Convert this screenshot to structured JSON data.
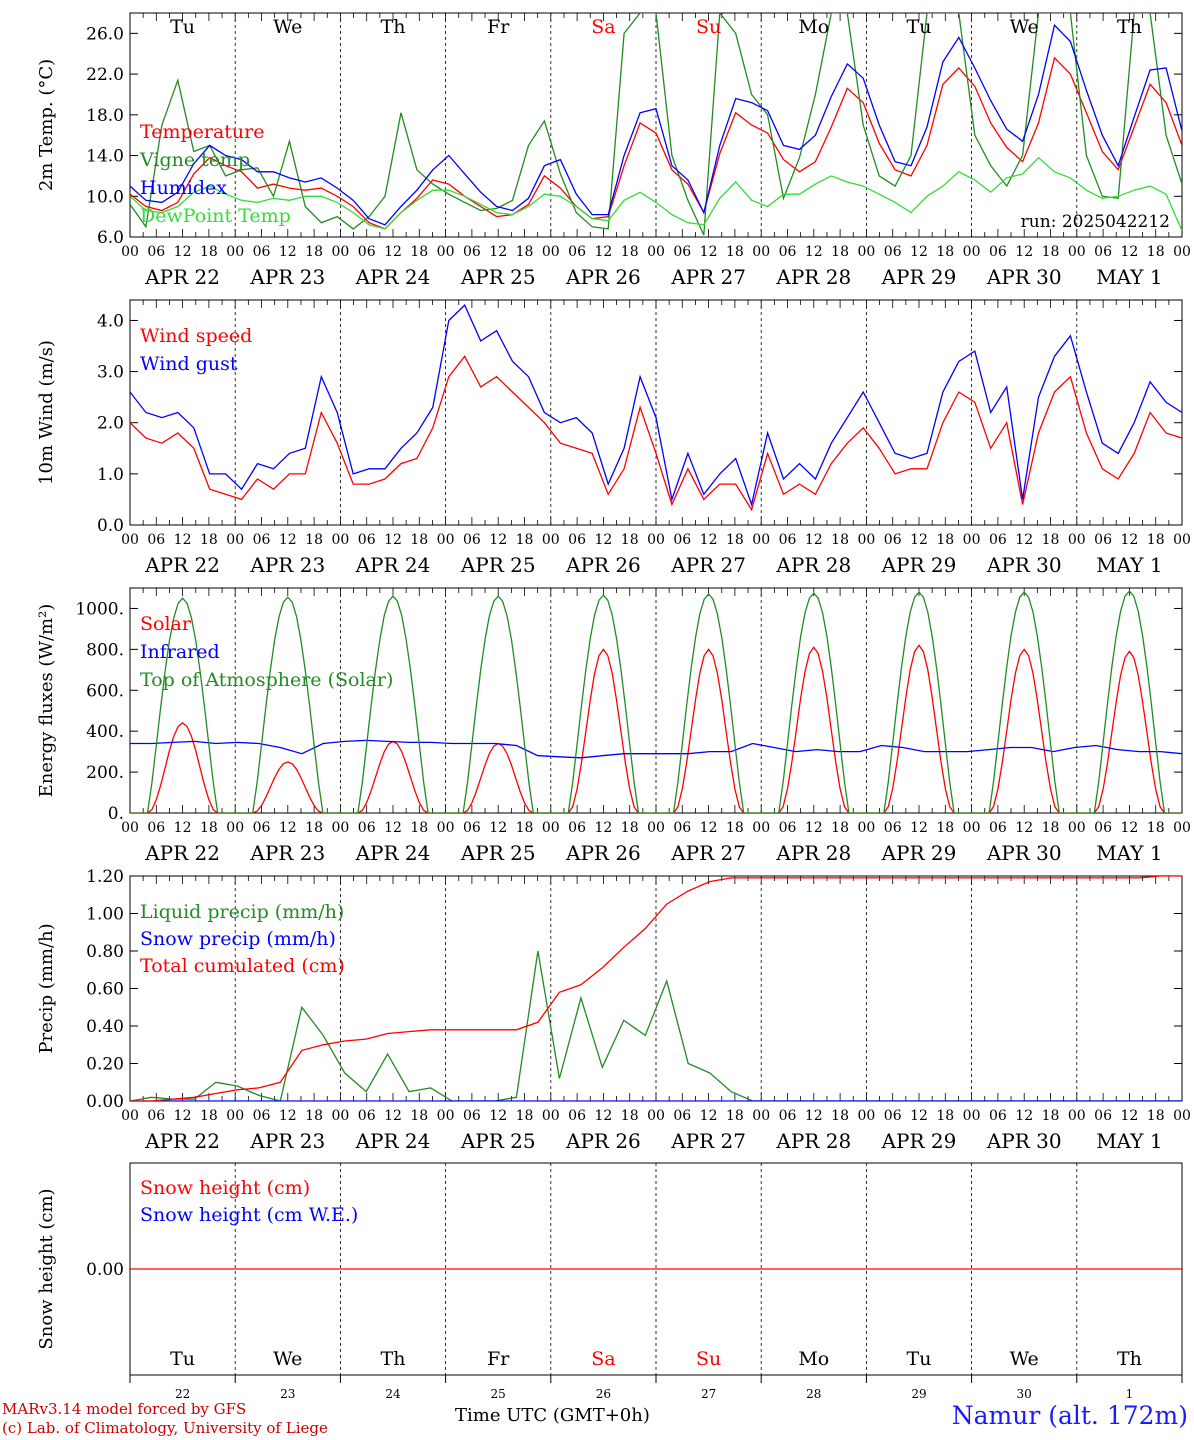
{
  "days": [
    "Tu",
    "We",
    "Th",
    "Fr",
    "Sa",
    "Su",
    "Mo",
    "Tu",
    "We",
    "Th"
  ],
  "weekend_day_index": [
    4,
    5
  ],
  "hour_ticks": [
    "00",
    "06",
    "12",
    "18"
  ],
  "end_hour": "00",
  "dates": [
    "APR 22",
    "APR 23",
    "APR 24",
    "APR 25",
    "APR 26",
    "APR 27",
    "APR 28",
    "APR 29",
    "APR 30",
    "MAY  1"
  ],
  "date_numbers": [
    "22",
    "23",
    "24",
    "25",
    "26",
    "27",
    "28",
    "29",
    "30",
    "1"
  ],
  "run_label": "run: 2025042212",
  "xlabel": "Time UTC (GMT+0h)",
  "footer_left": [
    "MARv3.14 model forced by GFS",
    "(c) Lab. of Climatology, University of Liege"
  ],
  "footer_right": "Namur (alt. 172m)",
  "colors": {
    "red": "#ff0000",
    "darkred": "#cc0000",
    "green": "#228b22",
    "blue": "#0000ff",
    "lightgreen": "#33dd33",
    "footer_red": "#cc0000",
    "footer_blue": "#1a1aff"
  },
  "chart_data": [
    {
      "type": "line",
      "ylabel": "2m Temp. (°C)",
      "ylim": [
        6,
        28
      ],
      "yticks": [
        "6.0",
        "10.0",
        "14.0",
        "18.0",
        "22.0",
        "26.0"
      ],
      "series": [
        {
          "name": "Temperature",
          "color": "#ff0000",
          "values": [
            10.2,
            9.0,
            8.6,
            9.4,
            12.2,
            13.8,
            13.0,
            12.4,
            10.8,
            11.2,
            10.8,
            10.6,
            10.8,
            10.0,
            9.0,
            7.4,
            6.8,
            8.4,
            9.8,
            11.6,
            11.2,
            10.0,
            9.0,
            8.0,
            8.2,
            9.2,
            12.0,
            10.8,
            9.0,
            7.8,
            8.0,
            13.0,
            17.2,
            16.2,
            12.6,
            11.2,
            8.4,
            14.2,
            18.2,
            17.0,
            16.2,
            13.6,
            12.4,
            13.4,
            16.8,
            20.6,
            19.2,
            15.2,
            12.6,
            12.0,
            15.0,
            21.0,
            22.6,
            20.8,
            17.2,
            14.8,
            13.4,
            17.2,
            23.6,
            22.0,
            18.2,
            14.4,
            12.6,
            16.8,
            21.0,
            19.2,
            15.0
          ]
        },
        {
          "name": "Vigne temp",
          "color": "#228b22",
          "values": [
            9.2,
            7.0,
            17.0,
            21.4,
            14.4,
            15.0,
            12.0,
            12.6,
            12.8,
            10.0,
            15.4,
            9.0,
            7.4,
            8.0,
            6.8,
            8.0,
            10.0,
            18.2,
            12.6,
            11.2,
            10.2,
            9.4,
            8.6,
            8.8,
            9.6,
            15.0,
            17.4,
            12.2,
            8.4,
            7.0,
            6.8,
            26.0,
            28.0,
            28.0,
            14.0,
            9.6,
            6.2,
            28.0,
            26.0,
            20.0,
            18.0,
            9.8,
            13.8,
            20.0,
            28.0,
            28.0,
            17.0,
            12.0,
            11.0,
            14.0,
            28.0,
            28.0,
            28.0,
            16.0,
            13.0,
            11.0,
            14.0,
            28.0,
            28.0,
            28.0,
            14.0,
            10.0,
            9.8,
            28.0,
            28.0,
            16.0,
            11.2
          ]
        },
        {
          "name": "Humidex",
          "color": "#0000ff",
          "values": [
            11.0,
            9.6,
            9.4,
            10.4,
            13.2,
            15.0,
            14.0,
            13.6,
            12.4,
            12.4,
            11.8,
            11.4,
            11.8,
            10.8,
            9.6,
            7.8,
            7.2,
            9.0,
            10.6,
            12.6,
            14.0,
            12.2,
            10.4,
            9.0,
            8.6,
            9.8,
            13.0,
            13.6,
            10.2,
            8.2,
            8.2,
            14.0,
            18.2,
            18.6,
            13.0,
            11.6,
            8.4,
            15.0,
            19.6,
            19.2,
            18.4,
            15.0,
            14.6,
            16.0,
            19.8,
            23.0,
            21.6,
            17.0,
            13.4,
            13.0,
            16.8,
            23.2,
            25.6,
            22.6,
            19.4,
            16.6,
            15.4,
            20.0,
            26.8,
            25.2,
            20.4,
            16.0,
            13.0,
            17.8,
            22.4,
            22.6,
            16.4
          ]
        },
        {
          "name": "DewPoint Temp",
          "color": "#33dd33",
          "values": [
            10.0,
            8.6,
            8.4,
            9.0,
            10.4,
            11.0,
            10.2,
            9.6,
            9.4,
            9.8,
            9.6,
            10.0,
            10.0,
            9.4,
            8.4,
            7.2,
            6.8,
            8.4,
            9.6,
            10.6,
            10.6,
            10.0,
            9.2,
            8.4,
            8.2,
            9.0,
            10.2,
            10.0,
            9.0,
            7.8,
            7.6,
            9.6,
            10.4,
            9.4,
            8.2,
            7.4,
            7.2,
            9.8,
            11.4,
            9.6,
            9.0,
            10.2,
            10.2,
            11.2,
            12.0,
            11.4,
            11.0,
            10.2,
            9.4,
            8.4,
            10.0,
            11.0,
            12.4,
            11.6,
            10.4,
            11.8,
            12.2,
            13.8,
            12.4,
            11.8,
            10.6,
            9.8,
            10.0,
            10.6,
            11.0,
            10.2,
            6.6
          ]
        }
      ]
    },
    {
      "type": "line",
      "ylabel": "10m Wind (m/s)",
      "ylim": [
        0,
        4.4
      ],
      "yticks": [
        "0.0",
        "1.0",
        "2.0",
        "3.0",
        "4.0"
      ],
      "series": [
        {
          "name": "Wind speed",
          "color": "#ff0000",
          "values": [
            2.0,
            1.7,
            1.6,
            1.8,
            1.5,
            0.7,
            0.6,
            0.5,
            0.9,
            0.7,
            1.0,
            1.0,
            2.2,
            1.6,
            0.8,
            0.8,
            0.9,
            1.2,
            1.3,
            1.9,
            2.9,
            3.3,
            2.7,
            2.9,
            2.6,
            2.3,
            2.0,
            1.6,
            1.5,
            1.4,
            0.6,
            1.1,
            2.3,
            1.4,
            0.4,
            1.1,
            0.5,
            0.8,
            0.8,
            0.3,
            1.4,
            0.6,
            0.8,
            0.6,
            1.2,
            1.6,
            1.9,
            1.5,
            1.0,
            1.1,
            1.1,
            2.0,
            2.6,
            2.4,
            1.5,
            2.0,
            0.4,
            1.8,
            2.6,
            2.9,
            1.8,
            1.1,
            0.9,
            1.4,
            2.2,
            1.8,
            1.7
          ]
        },
        {
          "name": "Wind gust",
          "color": "#0000ff",
          "values": [
            2.6,
            2.2,
            2.1,
            2.2,
            1.9,
            1.0,
            1.0,
            0.7,
            1.2,
            1.1,
            1.4,
            1.5,
            2.9,
            2.2,
            1.0,
            1.1,
            1.1,
            1.5,
            1.8,
            2.3,
            4.0,
            4.3,
            3.6,
            3.8,
            3.2,
            2.9,
            2.2,
            2.0,
            2.1,
            1.8,
            0.8,
            1.5,
            2.9,
            2.1,
            0.5,
            1.4,
            0.6,
            1.0,
            1.3,
            0.4,
            1.8,
            0.9,
            1.2,
            0.9,
            1.6,
            2.1,
            2.6,
            2.0,
            1.4,
            1.3,
            1.4,
            2.6,
            3.2,
            3.4,
            2.2,
            2.7,
            0.5,
            2.5,
            3.3,
            3.7,
            2.6,
            1.6,
            1.4,
            2.0,
            2.8,
            2.4,
            2.2
          ]
        }
      ]
    },
    {
      "type": "line",
      "ylabel": "Energy fluxes (W/m²)",
      "ylim": [
        0,
        1100
      ],
      "yticks": [
        "0.",
        "200.",
        "400.",
        "600.",
        "800.",
        "1000."
      ],
      "series": [
        {
          "name": "Solar",
          "color": "#ff0000",
          "diurnal_peaks": [
            440,
            250,
            350,
            340,
            800,
            800,
            810,
            820,
            800,
            790
          ]
        },
        {
          "name": "Infrared",
          "color": "#0000ff",
          "values": [
            340,
            340,
            345,
            350,
            340,
            345,
            340,
            320,
            290,
            340,
            350,
            355,
            350,
            345,
            345,
            340,
            340,
            340,
            330,
            280,
            275,
            270,
            280,
            290,
            290,
            290,
            290,
            300,
            300,
            340,
            320,
            300,
            310,
            300,
            300,
            330,
            320,
            300,
            300,
            300,
            310,
            320,
            320,
            300,
            320,
            330,
            310,
            300,
            300,
            290
          ]
        },
        {
          "name": "Top of Atmosphere (Solar)",
          "color": "#228b22",
          "diurnal_peaks": [
            1050,
            1055,
            1060,
            1060,
            1065,
            1070,
            1075,
            1080,
            1080,
            1085
          ]
        }
      ]
    },
    {
      "type": "line",
      "ylabel": "Precip (mm/h)",
      "ylim": [
        0,
        1.2
      ],
      "yticks": [
        "0.00",
        "0.20",
        "0.40",
        "0.60",
        "0.80",
        "1.00",
        "1.20"
      ],
      "series": [
        {
          "name": "Liquid precip (mm/h)",
          "color": "#228b22",
          "values": [
            0,
            0.02,
            0.01,
            0.01,
            0.1,
            0.08,
            0.03,
            0,
            0.5,
            0.35,
            0.15,
            0.05,
            0.25,
            0.05,
            0.07,
            0,
            0,
            0,
            0.02,
            0.8,
            0.12,
            0.55,
            0.18,
            0.43,
            0.35,
            0.64,
            0.2,
            0.15,
            0.05,
            0,
            0,
            0,
            0,
            0,
            0,
            0,
            0,
            0,
            0,
            0,
            0,
            0,
            0,
            0,
            0,
            0,
            0,
            0,
            0,
            0
          ]
        },
        {
          "name": "Snow precip (mm/h)",
          "color": "#0000ff",
          "values": [
            0,
            0,
            0,
            0,
            0,
            0,
            0,
            0,
            0,
            0,
            0,
            0,
            0,
            0,
            0,
            0,
            0,
            0,
            0,
            0,
            0,
            0,
            0,
            0,
            0,
            0,
            0,
            0,
            0,
            0,
            0,
            0,
            0,
            0,
            0,
            0,
            0,
            0,
            0,
            0,
            0,
            0,
            0,
            0,
            0,
            0,
            0,
            0,
            0,
            0
          ]
        },
        {
          "name": "Total cumulated (cm)",
          "color": "#ff0000",
          "values": [
            0,
            0,
            0.01,
            0.02,
            0.04,
            0.06,
            0.07,
            0.1,
            0.27,
            0.3,
            0.32,
            0.33,
            0.36,
            0.37,
            0.38,
            0.38,
            0.38,
            0.38,
            0.38,
            0.42,
            0.58,
            0.62,
            0.71,
            0.82,
            0.92,
            1.05,
            1.12,
            1.17,
            1.19,
            1.19,
            1.19,
            1.19,
            1.19,
            1.19,
            1.19,
            1.19,
            1.19,
            1.19,
            1.19,
            1.19,
            1.19,
            1.19,
            1.19,
            1.19,
            1.19,
            1.19,
            1.19,
            1.19,
            1.2,
            1.2
          ]
        }
      ]
    },
    {
      "type": "line",
      "ylabel": "Snow height (cm)",
      "ylim": [
        -1,
        1
      ],
      "yticks": [
        "0.00"
      ],
      "series": [
        {
          "name": "Snow height (cm)",
          "color": "#ff0000",
          "values": [
            0,
            0
          ]
        },
        {
          "name": "Snow height (cm W.E.)",
          "color": "#0000ff",
          "values": []
        }
      ]
    }
  ]
}
